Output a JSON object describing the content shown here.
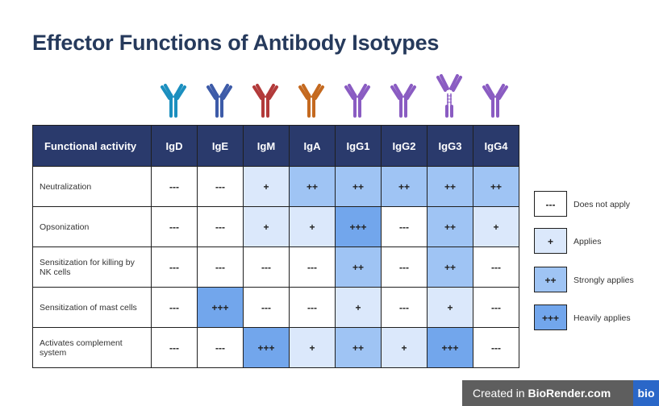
{
  "title": "Effector Functions of Antibody Isotypes",
  "colors": {
    "header_bg": "#2a3a6c",
    "title": "#263a5c",
    "level_none": "#ffffff",
    "level_applies": "#dbe8fb",
    "level_strong": "#9fc4f4",
    "level_heavy": "#72a6ec"
  },
  "antibody_icons": [
    {
      "name": "IgD",
      "color": "#1b8fbf",
      "icon": "igd-antibody-icon"
    },
    {
      "name": "IgE",
      "color": "#3d5ba8",
      "icon": "ige-antibody-icon"
    },
    {
      "name": "IgM",
      "color": "#b23a3a",
      "icon": "igm-antibody-icon"
    },
    {
      "name": "IgA",
      "color": "#c4691f",
      "icon": "iga-antibody-icon"
    },
    {
      "name": "IgG1",
      "color": "#8a5cc2",
      "icon": "igg1-antibody-icon"
    },
    {
      "name": "IgG2",
      "color": "#8a5cc2",
      "icon": "igg2-antibody-icon"
    },
    {
      "name": "IgG3",
      "color": "#8a5cc2",
      "icon": "igg3-antibody-icon"
    },
    {
      "name": "IgG4",
      "color": "#8a5cc2",
      "icon": "igg4-antibody-icon"
    }
  ],
  "table": {
    "header_label": "Functional activity",
    "isotypes": [
      "IgD",
      "IgE",
      "IgM",
      "IgA",
      "IgG1",
      "IgG2",
      "IgG3",
      "IgG4"
    ],
    "rows": [
      {
        "label": "Neutralization",
        "values": [
          "---",
          "---",
          "+",
          "++",
          "++",
          "++",
          "++",
          "++"
        ]
      },
      {
        "label": "Opsonization",
        "values": [
          "---",
          "---",
          "+",
          "+",
          "+++",
          "---",
          "++",
          "+"
        ]
      },
      {
        "label": "Sensitization for killing by NK cells",
        "values": [
          "---",
          "---",
          "---",
          "---",
          "++",
          "---",
          "++",
          "---"
        ]
      },
      {
        "label": "Sensitization of mast cells",
        "values": [
          "---",
          "+++",
          "---",
          "---",
          "+",
          "---",
          "+",
          "---"
        ]
      },
      {
        "label": "Activates complement system",
        "values": [
          "---",
          "---",
          "+++",
          "+",
          "++",
          "+",
          "+++",
          "---"
        ]
      }
    ]
  },
  "legend": [
    {
      "symbol": "---",
      "label": "Does not apply"
    },
    {
      "symbol": "+",
      "label": "Applies"
    },
    {
      "symbol": "++",
      "label": "Strongly applies"
    },
    {
      "symbol": "+++",
      "label": "Heavily applies"
    }
  ],
  "credit": {
    "prefix": "Created in",
    "brand": "BioRender.com",
    "logo": "bio"
  }
}
